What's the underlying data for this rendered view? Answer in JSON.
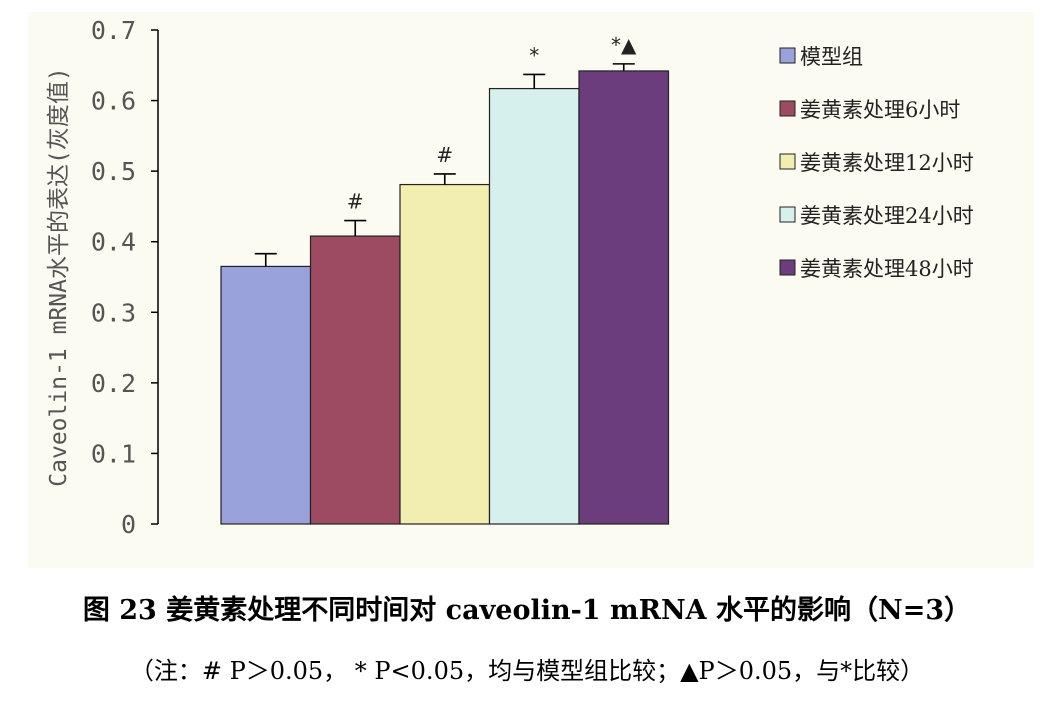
{
  "chart_data": {
    "type": "bar",
    "categories": [
      "模型组",
      "姜黄素处理6小时",
      "姜黄素处理12小时",
      "姜黄素处理24小时",
      "姜黄素处理48小时"
    ],
    "values": [
      0.365,
      0.408,
      0.481,
      0.617,
      0.642
    ],
    "errors": [
      0.018,
      0.022,
      0.015,
      0.02,
      0.01
    ],
    "colors": [
      "#9aa2dc",
      "#9d4b62",
      "#f2eeb0",
      "#d6f0ee",
      "#6c3d7c"
    ],
    "annotations": [
      "",
      "#",
      "#",
      "*",
      "*▲"
    ],
    "ylabel": "Caveolin-1 mRNA水平的表达(灰度值)",
    "ylim": [
      0,
      0.7
    ],
    "yticks": [
      "0",
      "0.1",
      "0.2",
      "0.3",
      "0.4",
      "0.5",
      "0.6",
      "0.7"
    ],
    "legend": [
      "模型组",
      "姜黄素处理6小时",
      "姜黄素处理12小时",
      "姜黄素处理24小时",
      "姜黄素处理48小时"
    ],
    "legend_position": "top-right",
    "grid": false
  },
  "caption": {
    "title": "图 23 姜黄素处理不同时间对 caveolin-1 mRNA 水平的影响（N=3）",
    "note": "（注：# P＞0.05， * P<0.05，均与模型组比较；▲P＞0.05，与*比较）"
  }
}
